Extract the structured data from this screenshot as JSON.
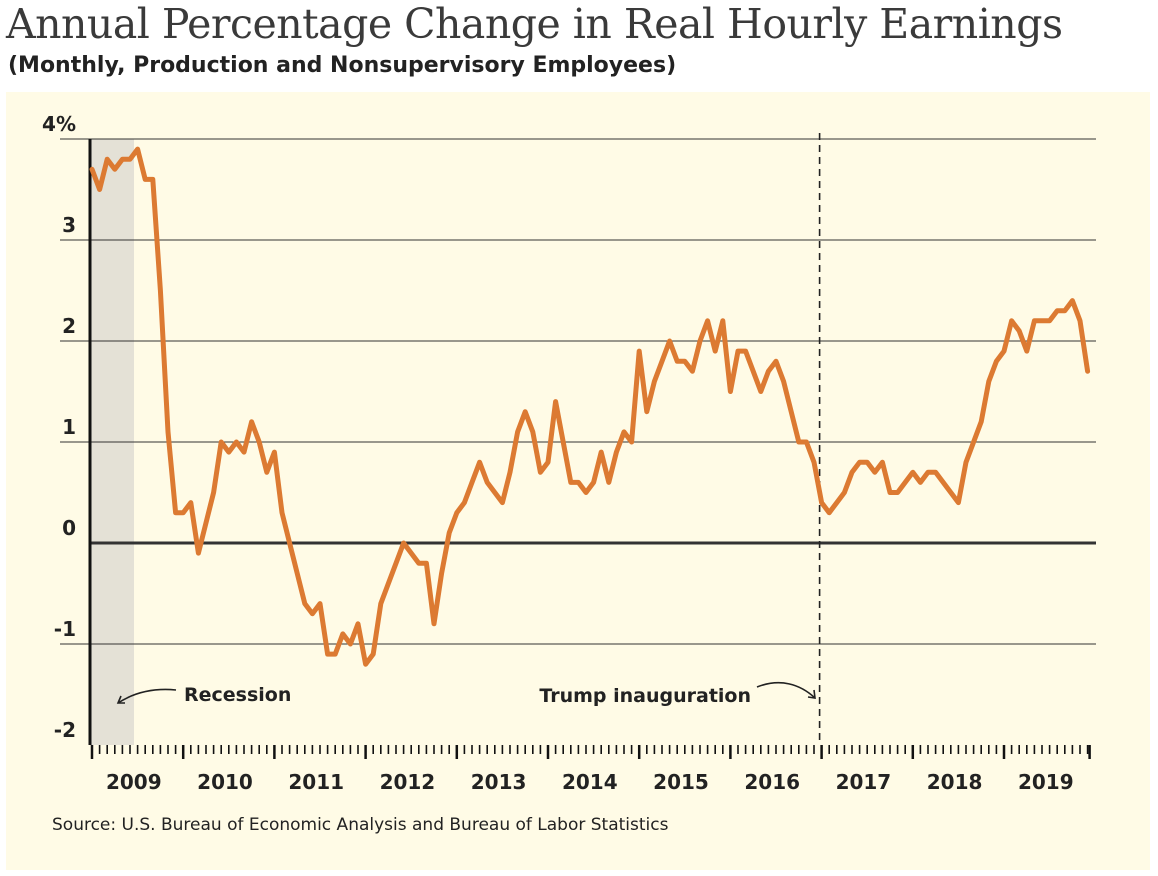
{
  "title": "Annual Percentage Change in Real Hourly Earnings",
  "subtitle": "(Monthly, Production and Nonsupervisory Employees)",
  "source": "Source: U.S. Bureau of Economic Analysis and Bureau of Labor Statistics",
  "colors": {
    "line": "#dc7a32",
    "background": "#fffbe6",
    "recession": "#e4e1d6",
    "grid": "#333333",
    "text": "#222222"
  },
  "chart_data": {
    "type": "line",
    "title": "Annual Percentage Change in Real Hourly Earnings",
    "subtitle": "(Monthly, Production and Nonsupervisory Employees)",
    "xlabel": "",
    "ylabel": "",
    "ylim": [
      -2,
      4
    ],
    "xlim": [
      "2009-01",
      "2019-12"
    ],
    "grid": true,
    "y_ticks": [
      {
        "value": 4,
        "label": "4%"
      },
      {
        "value": 3,
        "label": "3"
      },
      {
        "value": 2,
        "label": "2"
      },
      {
        "value": 1,
        "label": "1"
      },
      {
        "value": 0,
        "label": "0"
      },
      {
        "value": -1,
        "label": "-1"
      },
      {
        "value": -2,
        "label": "-2"
      }
    ],
    "x_ticks": [
      "2009",
      "2010",
      "2011",
      "2012",
      "2013",
      "2014",
      "2015",
      "2016",
      "2017",
      "2018",
      "2019"
    ],
    "shaded_regions": [
      {
        "label": "Recession",
        "start": "2009-01",
        "end": "2009-06"
      }
    ],
    "vertical_lines": [
      {
        "label": "Trump inauguration",
        "x": "2017-01"
      }
    ],
    "series": [
      {
        "x": [
          "2009-01",
          "2009-02",
          "2009-03",
          "2009-04",
          "2009-05",
          "2009-06",
          "2009-07",
          "2009-08",
          "2009-09",
          "2009-10",
          "2009-11",
          "2009-12",
          "2010-01",
          "2010-02",
          "2010-03",
          "2010-04",
          "2010-05",
          "2010-06",
          "2010-07",
          "2010-08",
          "2010-09",
          "2010-10",
          "2010-11",
          "2010-12",
          "2011-01",
          "2011-02",
          "2011-03",
          "2011-04",
          "2011-05",
          "2011-06",
          "2011-07",
          "2011-08",
          "2011-09",
          "2011-10",
          "2011-11",
          "2011-12",
          "2012-01",
          "2012-02",
          "2012-03",
          "2012-04",
          "2012-05",
          "2012-06",
          "2012-07",
          "2012-08",
          "2012-09",
          "2012-10",
          "2012-11",
          "2012-12",
          "2013-01",
          "2013-02",
          "2013-03",
          "2013-04",
          "2013-05",
          "2013-06",
          "2013-07",
          "2013-08",
          "2013-09",
          "2013-10",
          "2013-11",
          "2013-12",
          "2014-01",
          "2014-02",
          "2014-03",
          "2014-04",
          "2014-05",
          "2014-06",
          "2014-07",
          "2014-08",
          "2014-09",
          "2014-10",
          "2014-11",
          "2014-12",
          "2015-01",
          "2015-02",
          "2015-03",
          "2015-04",
          "2015-05",
          "2015-06",
          "2015-07",
          "2015-08",
          "2015-09",
          "2015-10",
          "2015-11",
          "2015-12",
          "2016-01",
          "2016-02",
          "2016-03",
          "2016-04",
          "2016-05",
          "2016-06",
          "2016-07",
          "2016-08",
          "2016-09",
          "2016-10",
          "2016-11",
          "2016-12",
          "2017-01",
          "2017-02",
          "2017-03",
          "2017-04",
          "2017-05",
          "2017-06",
          "2017-07",
          "2017-08",
          "2017-09",
          "2017-10",
          "2017-11",
          "2017-12",
          "2018-01",
          "2018-02",
          "2018-03",
          "2018-04",
          "2018-05",
          "2018-06",
          "2018-07",
          "2018-08",
          "2018-09",
          "2018-10",
          "2018-11",
          "2018-12",
          "2019-01",
          "2019-02",
          "2019-03",
          "2019-04",
          "2019-05",
          "2019-06",
          "2019-07",
          "2019-08",
          "2019-09",
          "2019-10",
          "2019-11",
          "2019-12"
        ],
        "values": [
          3.7,
          3.5,
          3.8,
          3.7,
          3.8,
          3.8,
          3.9,
          3.6,
          3.6,
          2.5,
          1.1,
          0.3,
          0.3,
          0.4,
          -0.1,
          0.2,
          0.5,
          1.0,
          0.9,
          1.0,
          0.9,
          1.2,
          1.0,
          0.7,
          0.9,
          0.3,
          0.0,
          -0.3,
          -0.6,
          -0.7,
          -0.6,
          -1.1,
          -1.1,
          -0.9,
          -1.0,
          -0.8,
          -1.2,
          -1.1,
          -0.6,
          -0.4,
          -0.2,
          0.0,
          -0.1,
          -0.2,
          -0.2,
          -0.8,
          -0.3,
          0.1,
          0.3,
          0.4,
          0.6,
          0.8,
          0.6,
          0.5,
          0.4,
          0.7,
          1.1,
          1.3,
          1.1,
          0.7,
          0.8,
          1.4,
          1.0,
          0.6,
          0.6,
          0.5,
          0.6,
          0.9,
          0.6,
          0.9,
          1.1,
          1.0,
          1.9,
          1.3,
          1.6,
          1.8,
          2.0,
          1.8,
          1.8,
          1.7,
          2.0,
          2.2,
          1.9,
          2.2,
          1.5,
          1.9,
          1.9,
          1.7,
          1.5,
          1.7,
          1.8,
          1.6,
          1.3,
          1.0,
          1.0,
          0.8,
          0.4,
          0.3,
          0.4,
          0.5,
          0.7,
          0.8,
          0.8,
          0.7,
          0.8,
          0.5,
          0.5,
          0.6,
          0.7,
          0.6,
          0.7,
          0.7,
          0.6,
          0.5,
          0.4,
          0.8,
          1.0,
          1.2,
          1.6,
          1.8,
          1.9,
          2.2,
          2.1,
          1.9,
          2.2,
          2.2,
          2.2,
          2.3,
          2.3,
          2.4,
          2.2,
          1.7
        ]
      }
    ]
  }
}
